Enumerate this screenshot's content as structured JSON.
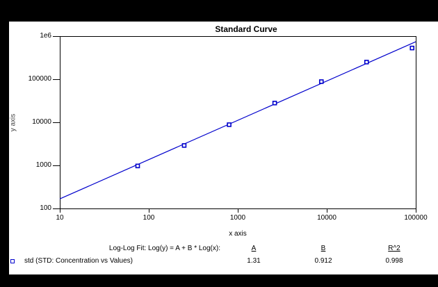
{
  "chart_data": {
    "type": "scatter",
    "title": "Standard Curve",
    "xlabel": "x axis",
    "ylabel": "y axis",
    "x_scale": "log",
    "y_scale": "log",
    "xlim": [
      10,
      100000
    ],
    "ylim": [
      100,
      1000000
    ],
    "x_tick_labels": [
      "10",
      "100",
      "1000",
      "10000",
      "100000"
    ],
    "y_tick_labels": [
      "100",
      "1000",
      "10000",
      "100000",
      "1e6"
    ],
    "grid": false,
    "legend_position": "bottom-left",
    "series": [
      {
        "name": "std",
        "label": "std (STD: Concentration vs Values)",
        "marker": "open-square",
        "color": "#0000CC",
        "points": [
          {
            "x": 75,
            "y": 970
          },
          {
            "x": 250,
            "y": 2900
          },
          {
            "x": 800,
            "y": 8800
          },
          {
            "x": 2600,
            "y": 28000
          },
          {
            "x": 8700,
            "y": 88000
          },
          {
            "x": 28000,
            "y": 250000
          },
          {
            "x": 91000,
            "y": 530000
          }
        ]
      }
    ],
    "fit": {
      "type": "log-log",
      "equation": "Log(y) = A + B * Log(x)",
      "A": 1.31,
      "B": 0.912,
      "R2": 0.998,
      "line_color": "#0000CC"
    }
  },
  "fit_table": {
    "formula_label": "Log-Log Fit: Log(y) = A + B * Log(x):",
    "columns": [
      {
        "header": "A",
        "value": "1.31"
      },
      {
        "header": "B",
        "value": "0.912"
      },
      {
        "header": "R^2",
        "value": "0.998"
      }
    ],
    "legend": {
      "marker": "open-square",
      "color": "#0000CC",
      "label": "std (STD: Concentration vs Values)"
    }
  },
  "colors": {
    "background": "#000000",
    "canvas": "#FFFFFF",
    "axis": "#000000",
    "text": "#000000",
    "accent_blue": "#0000CC"
  }
}
